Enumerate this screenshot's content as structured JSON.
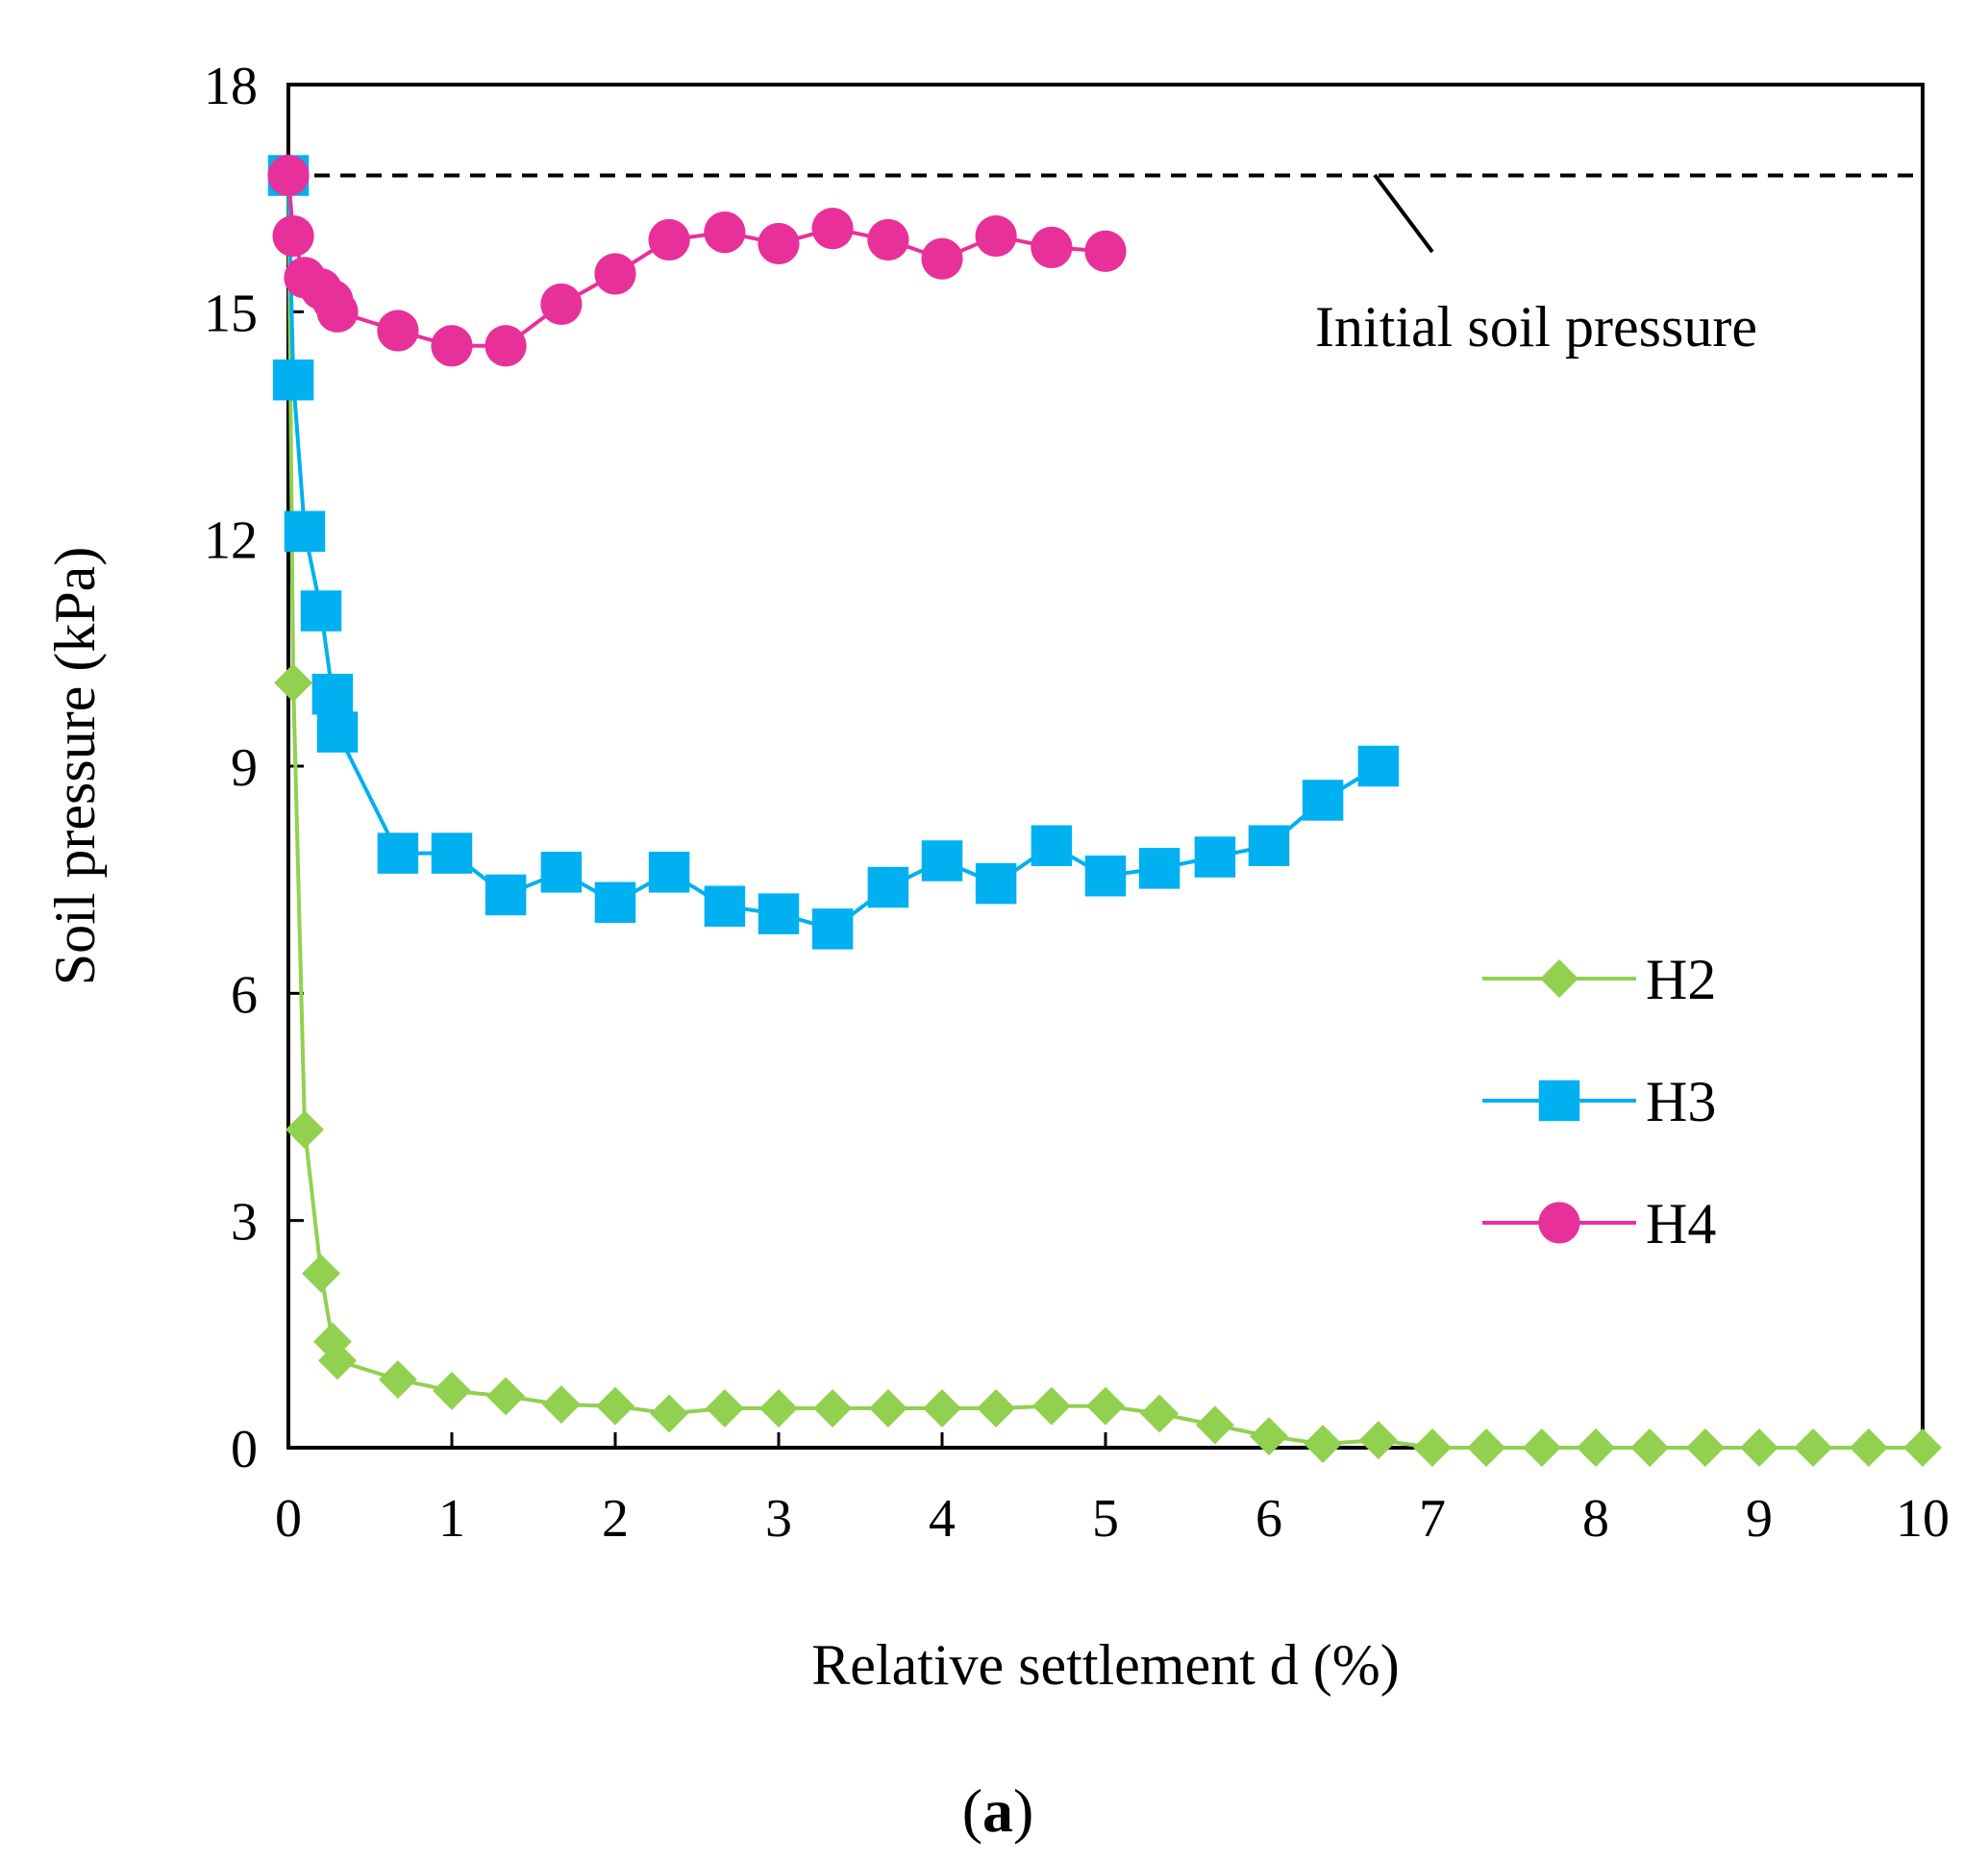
{
  "chart_data": {
    "type": "line",
    "xlabel": "Relative settlement d (%)",
    "ylabel": "Soil pressure (kPa)",
    "xlim": [
      0,
      10
    ],
    "ylim": [
      0,
      18
    ],
    "xticks": [
      0,
      1,
      2,
      3,
      4,
      5,
      6,
      7,
      8,
      9,
      10
    ],
    "yticks": [
      0,
      3,
      6,
      9,
      12,
      15,
      18
    ],
    "grid": false,
    "legend_position": "right",
    "caption": {
      "open": "(",
      "letter": "a",
      "close": ")"
    },
    "reference_line": {
      "label": "Initial soil pressure",
      "y": 16.8,
      "style": "dashed"
    },
    "series": [
      {
        "name": "H2",
        "color": "#92d050",
        "marker": "diamond",
        "points": [
          [
            0,
            16.8
          ],
          [
            0.03,
            10.1
          ],
          [
            0.1,
            4.2
          ],
          [
            0.2,
            2.3
          ],
          [
            0.27,
            1.4
          ],
          [
            0.3,
            1.15
          ],
          [
            0.67,
            0.9
          ],
          [
            1.0,
            0.75
          ],
          [
            1.33,
            0.68
          ],
          [
            1.67,
            0.57
          ],
          [
            2.0,
            0.55
          ],
          [
            2.33,
            0.45
          ],
          [
            2.67,
            0.52
          ],
          [
            3.0,
            0.52
          ],
          [
            3.33,
            0.52
          ],
          [
            3.67,
            0.52
          ],
          [
            4.0,
            0.52
          ],
          [
            4.33,
            0.52
          ],
          [
            4.67,
            0.55
          ],
          [
            5.0,
            0.55
          ],
          [
            5.33,
            0.45
          ],
          [
            5.67,
            0.3
          ],
          [
            6.0,
            0.15
          ],
          [
            6.33,
            0.05
          ],
          [
            6.67,
            0.1
          ],
          [
            7.0,
            0
          ],
          [
            7.33,
            0
          ],
          [
            7.67,
            0
          ],
          [
            8.0,
            0
          ],
          [
            8.33,
            0
          ],
          [
            8.67,
            0
          ],
          [
            9.0,
            0
          ],
          [
            9.33,
            0
          ],
          [
            9.67,
            0
          ],
          [
            10.0,
            0
          ]
        ]
      },
      {
        "name": "H3",
        "color": "#00b0f0",
        "marker": "square",
        "points": [
          [
            0,
            16.8
          ],
          [
            0.03,
            14.1
          ],
          [
            0.1,
            12.1
          ],
          [
            0.2,
            11.05
          ],
          [
            0.27,
            9.95
          ],
          [
            0.3,
            9.45
          ],
          [
            0.67,
            7.85
          ],
          [
            1.0,
            7.85
          ],
          [
            1.33,
            7.3
          ],
          [
            1.67,
            7.6
          ],
          [
            2.0,
            7.2
          ],
          [
            2.33,
            7.6
          ],
          [
            2.67,
            7.15
          ],
          [
            3.0,
            7.05
          ],
          [
            3.33,
            6.85
          ],
          [
            3.67,
            7.4
          ],
          [
            4.0,
            7.75
          ],
          [
            4.33,
            7.45
          ],
          [
            4.67,
            7.95
          ],
          [
            5.0,
            7.55
          ],
          [
            5.33,
            7.65
          ],
          [
            5.67,
            7.8
          ],
          [
            6.0,
            7.95
          ],
          [
            6.33,
            8.55
          ],
          [
            6.67,
            9.0
          ]
        ]
      },
      {
        "name": "H4",
        "color": "#e8309a",
        "marker": "circle",
        "points": [
          [
            0,
            16.8
          ],
          [
            0.03,
            16.0
          ],
          [
            0.1,
            15.45
          ],
          [
            0.2,
            15.3
          ],
          [
            0.27,
            15.15
          ],
          [
            0.3,
            15.0
          ],
          [
            0.67,
            14.75
          ],
          [
            1.0,
            14.55
          ],
          [
            1.33,
            14.55
          ],
          [
            1.67,
            15.1
          ],
          [
            2.0,
            15.5
          ],
          [
            2.33,
            15.95
          ],
          [
            2.67,
            16.05
          ],
          [
            3.0,
            15.9
          ],
          [
            3.33,
            16.1
          ],
          [
            3.67,
            15.95
          ],
          [
            4.0,
            15.7
          ],
          [
            4.33,
            16.0
          ],
          [
            4.67,
            15.85
          ],
          [
            5.0,
            15.8
          ]
        ]
      }
    ]
  }
}
